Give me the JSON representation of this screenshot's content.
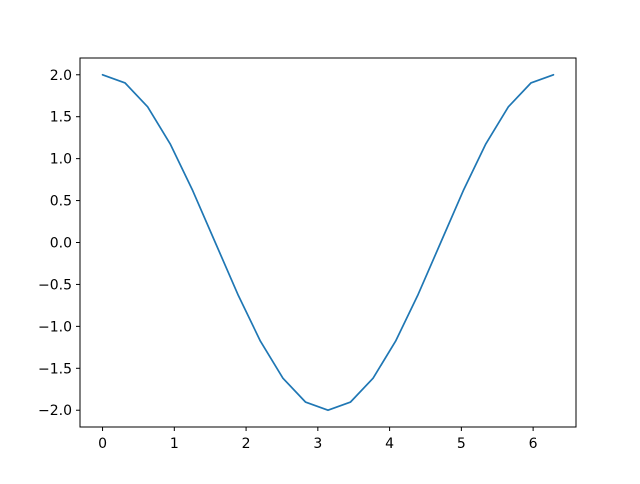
{
  "chart_data": {
    "type": "line",
    "title": "",
    "xlabel": "",
    "ylabel": "",
    "grid": false,
    "legend": false,
    "background": "#ffffff",
    "spine_color": "#000000",
    "tick_color": "#000000",
    "line_color": "#1f77b4",
    "line_width": 1.7,
    "xlim": [
      -0.3142,
      6.5974
    ],
    "ylim": [
      -2.2,
      2.2
    ],
    "x": [
      0.0,
      0.3142,
      0.6283,
      0.9425,
      1.2566,
      1.5708,
      1.885,
      2.1991,
      2.5133,
      2.8274,
      3.1416,
      3.4558,
      3.7699,
      4.0841,
      4.3982,
      4.7124,
      5.0265,
      5.3407,
      5.6549,
      5.969,
      6.2832
    ],
    "y": [
      2.0,
      1.9021,
      1.618,
      1.1756,
      0.618,
      0.0,
      -0.618,
      -1.1756,
      -1.618,
      -1.9021,
      -2.0,
      -1.9021,
      -1.618,
      -1.1756,
      -0.618,
      0.0,
      0.618,
      1.1756,
      1.618,
      1.9021,
      2.0
    ],
    "xticks": {
      "values": [
        0,
        1,
        2,
        3,
        4,
        5,
        6
      ],
      "labels": [
        "0",
        "1",
        "2",
        "3",
        "4",
        "5",
        "6"
      ]
    },
    "yticks": {
      "values": [
        -2.0,
        -1.5,
        -1.0,
        -0.5,
        0.0,
        0.5,
        1.0,
        1.5,
        2.0
      ],
      "labels": [
        "−2.0",
        "−1.5",
        "−1.0",
        "−0.5",
        "0.0",
        "0.5",
        "1.0",
        "1.5",
        "2.0"
      ]
    }
  }
}
